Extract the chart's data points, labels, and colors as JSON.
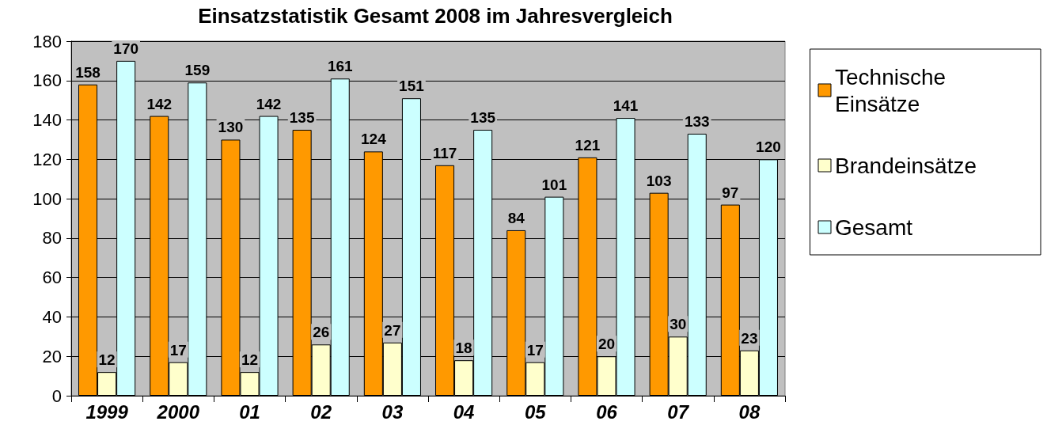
{
  "chart_data": {
    "type": "bar",
    "title": "Einsatzstatistik Gesamt 2008 im Jahresvergleich",
    "categories": [
      "1999",
      "2000",
      "01",
      "02",
      "03",
      "04",
      "05",
      "06",
      "07",
      "08"
    ],
    "series": [
      {
        "name": "Technische Einsätze",
        "color": "#ff9900",
        "values": [
          158,
          142,
          130,
          135,
          124,
          117,
          84,
          121,
          103,
          97
        ]
      },
      {
        "name": "Brandeinsätze",
        "color": "#ffffcc",
        "values": [
          12,
          17,
          12,
          26,
          27,
          18,
          17,
          20,
          30,
          23
        ]
      },
      {
        "name": "Gesamt",
        "color": "#ccffff",
        "values": [
          170,
          159,
          142,
          161,
          151,
          135,
          101,
          141,
          133,
          120
        ]
      }
    ],
    "ylim": [
      0,
      180
    ],
    "yticks": [
      0,
      20,
      40,
      60,
      80,
      100,
      120,
      140,
      160,
      180
    ],
    "grid": "y",
    "legend": "right",
    "data_labels": true
  }
}
